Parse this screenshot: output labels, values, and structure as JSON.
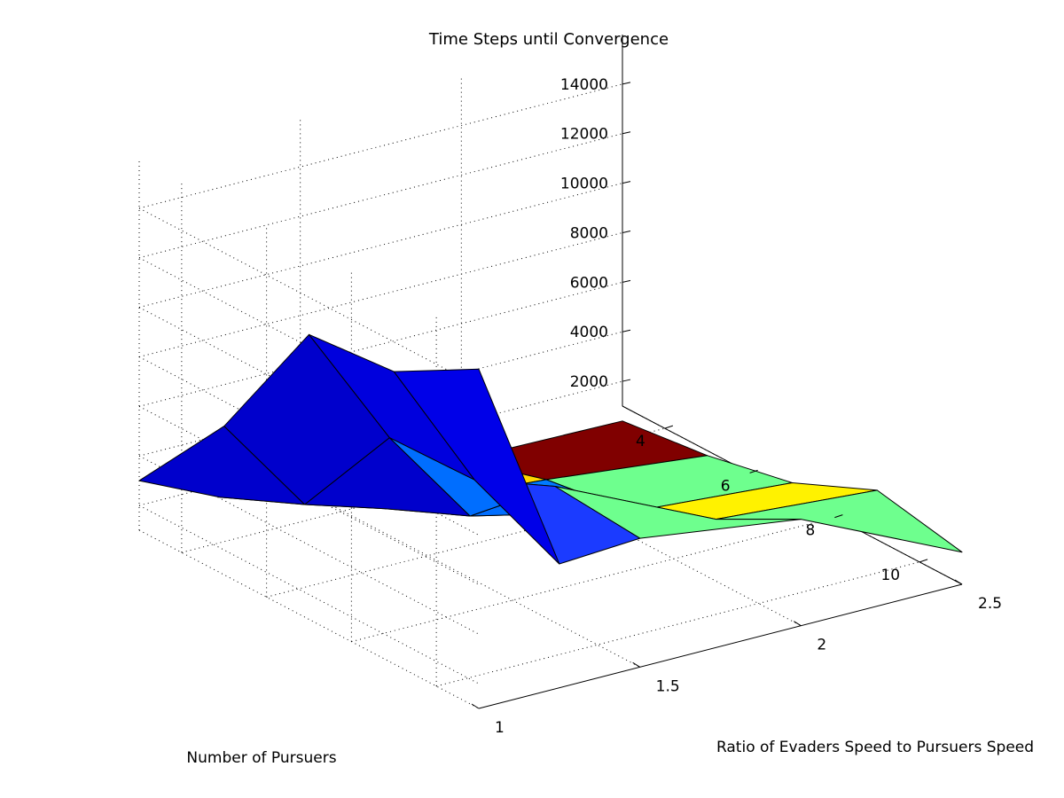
{
  "chart_data": {
    "type": "surface",
    "title": "Time Steps until Convergence",
    "xlabel": "Number of Pursuers",
    "ylabel": "Ratio of Evaders Speed to Pursuers Speed",
    "zlabel": "",
    "x": [
      3,
      5,
      7,
      9,
      11
    ],
    "y": [
      1,
      1.25,
      1.5,
      2,
      2.5
    ],
    "z": [
      [
        3000,
        1500,
        1000,
        500,
        400
      ],
      [
        7000,
        3000,
        2000,
        1500,
        800
      ],
      [
        12500,
        7500,
        3500,
        2000,
        1500
      ],
      [
        12800,
        7600,
        6500,
        3500,
        3000
      ],
      [
        14700,
        6000,
        6200,
        5300,
        2300
      ]
    ],
    "face_colors": [
      [
        "#0000CC",
        "#0000CC",
        "#0000DD",
        "#0000E8"
      ],
      [
        "#00E1FF",
        "#0000CC",
        "#006EFF",
        "#1B3BFF"
      ],
      [
        "#FFD700",
        "#007BFF",
        "#006EFF",
        "#6EFF8E"
      ],
      [
        "#800000",
        "#6EFF8E",
        "#FFF200",
        "#6EFF8E"
      ]
    ],
    "xticks": [
      4,
      6,
      8,
      10
    ],
    "yticks": [
      1,
      1.5,
      2,
      2.5
    ],
    "zticks": [
      2000,
      4000,
      6000,
      8000,
      10000,
      12000,
      14000
    ],
    "xtick_labels": [
      "4",
      "6",
      "8",
      "10"
    ],
    "ytick_labels": [
      "1",
      "1.5",
      "2",
      "2.5"
    ],
    "ztick_labels": [
      "2000",
      "4000",
      "6000",
      "8000",
      "10000",
      "12000",
      "14000"
    ],
    "xlim": [
      3,
      11
    ],
    "ylim": [
      1,
      2.5
    ],
    "zlim": [
      1000,
      16000
    ],
    "grid": true,
    "background": "#ffffff"
  }
}
